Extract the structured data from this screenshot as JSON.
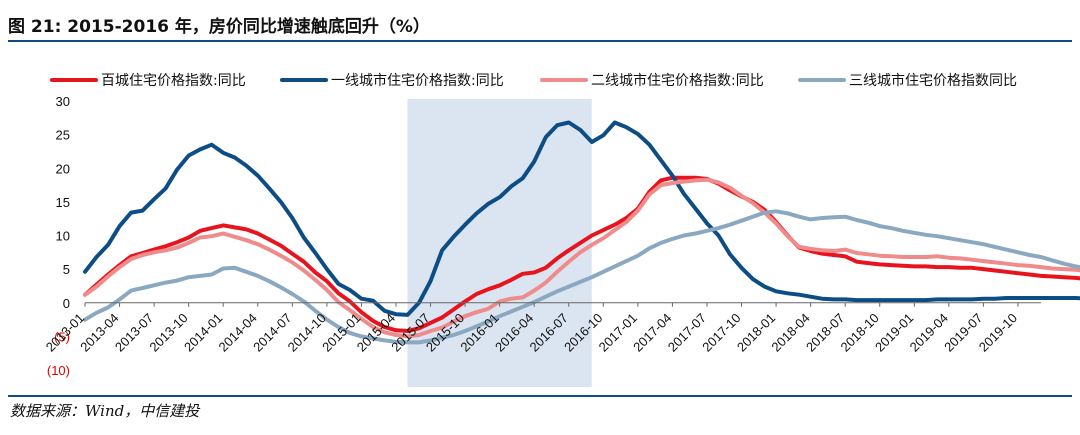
{
  "header": {
    "title": "图 21: 2015-2016 年，房价同比增速触底回升（%）"
  },
  "footer": {
    "source": "数据来源：Wind，中信建投"
  },
  "chart_data": {
    "type": "line",
    "title": "",
    "xlabel": "",
    "ylabel": "",
    "ylim": [
      -10,
      30
    ],
    "yticks": [
      {
        "value": 30,
        "label": "30"
      },
      {
        "value": 25,
        "label": "25"
      },
      {
        "value": 20,
        "label": "20"
      },
      {
        "value": 15,
        "label": "15"
      },
      {
        "value": 10,
        "label": "10"
      },
      {
        "value": 5,
        "label": "5"
      },
      {
        "value": 0,
        "label": "0"
      },
      {
        "value": -5,
        "label": "(5)"
      },
      {
        "value": -10,
        "label": "(10)"
      }
    ],
    "xtick_labels": [
      "2013-01",
      "2013-04",
      "2013-07",
      "2013-10",
      "2014-01",
      "2014-04",
      "2014-07",
      "2014-10",
      "2015-01",
      "2015-04",
      "2015-07",
      "2015-10",
      "2016-01",
      "2016-04",
      "2016-07",
      "2016-10",
      "2017-01",
      "2017-04",
      "2017-07",
      "2017-10",
      "2018-01",
      "2018-04",
      "2018-07",
      "2018-10",
      "2019-01",
      "2019-04",
      "2019-07",
      "2019-10"
    ],
    "x_start": "2013-01",
    "x_end": "2019-12",
    "highlight_period": [
      "2015-05",
      "2016-09"
    ],
    "highlight_color": "#dbe5f1",
    "legend_position": "top",
    "series": [
      {
        "name": "百城住宅价格指数:同比",
        "color": "#e8141d",
        "values": [
          1.2,
          2.7,
          4.2,
          5.6,
          6.9,
          7.4,
          7.9,
          8.4,
          9.0,
          9.7,
          10.7,
          11.1,
          11.5,
          11.2,
          10.9,
          10.3,
          9.4,
          8.5,
          7.3,
          6.1,
          4.5,
          3.2,
          1.4,
          0.2,
          -1.4,
          -2.7,
          -3.6,
          -4.1,
          -4.2,
          -3.8,
          -3.0,
          -2.2,
          -1.0,
          0.2,
          1.3,
          2.0,
          2.6,
          3.4,
          4.3,
          4.5,
          5.2,
          6.6,
          7.8,
          8.9,
          10.0,
          10.8,
          11.6,
          12.6,
          14.0,
          16.5,
          18.2,
          18.6,
          18.6,
          18.6,
          18.4,
          17.7,
          16.7,
          15.8,
          15.0,
          13.8,
          12.0,
          10.0,
          8.2,
          7.7,
          7.3,
          7.1,
          6.9,
          6.1,
          5.9,
          5.7,
          5.6,
          5.5,
          5.4,
          5.4,
          5.3,
          5.3,
          5.2,
          5.2,
          5.0,
          4.8,
          4.6,
          4.4,
          4.2,
          4.0,
          3.9,
          3.8,
          3.7,
          3.5,
          3.3,
          3.3,
          3.4
        ]
      },
      {
        "name": "一线城市住宅价格指数:同比",
        "color": "#0d4d86",
        "values": [
          4.6,
          6.8,
          8.6,
          11.4,
          13.4,
          13.7,
          15.4,
          17.0,
          19.8,
          21.9,
          22.8,
          23.5,
          22.3,
          21.6,
          20.4,
          18.9,
          17.0,
          15.0,
          12.6,
          9.7,
          7.4,
          5.0,
          2.8,
          1.9,
          0.6,
          0.3,
          -1.2,
          -1.7,
          -1.8,
          0.0,
          3.2,
          7.8,
          9.8,
          11.6,
          13.3,
          14.7,
          15.7,
          17.3,
          18.5,
          21.0,
          24.6,
          26.4,
          26.8,
          25.7,
          23.9,
          24.9,
          26.8,
          26.1,
          25.1,
          23.5,
          21.2,
          18.9,
          16.2,
          14.0,
          11.8,
          10.0,
          7.2,
          5.2,
          3.5,
          2.4,
          1.7,
          1.4,
          1.2,
          0.9,
          0.6,
          0.5,
          0.5,
          0.4,
          0.4,
          0.4,
          0.4,
          0.4,
          0.4,
          0.4,
          0.5,
          0.5,
          0.5,
          0.5,
          0.6,
          0.6,
          0.7,
          0.7,
          0.7,
          0.7,
          0.7,
          0.7,
          0.7,
          0.6,
          0.6,
          0.7,
          0.8
        ]
      },
      {
        "name": "二线城市住宅价格指数:同比",
        "color": "#f08b8b",
        "values": [
          1.2,
          2.4,
          3.9,
          5.3,
          6.5,
          7.1,
          7.5,
          7.8,
          8.2,
          8.9,
          9.7,
          9.9,
          10.3,
          9.8,
          9.3,
          8.7,
          7.9,
          7.0,
          6.0,
          4.8,
          3.4,
          1.9,
          0.1,
          -1.1,
          -2.4,
          -3.6,
          -4.4,
          -4.8,
          -5.0,
          -4.8,
          -4.2,
          -3.7,
          -2.8,
          -2.0,
          -1.4,
          -0.9,
          0.2,
          0.6,
          0.8,
          1.8,
          3.0,
          4.6,
          6.1,
          7.5,
          8.6,
          9.6,
          10.8,
          12.0,
          13.7,
          16.1,
          17.5,
          17.8,
          18.0,
          18.2,
          18.3,
          17.9,
          17.1,
          15.9,
          14.8,
          13.4,
          11.8,
          9.9,
          8.3,
          8.0,
          7.8,
          7.7,
          7.9,
          7.4,
          7.2,
          7.0,
          6.9,
          6.8,
          6.8,
          6.8,
          6.9,
          6.7,
          6.6,
          6.4,
          6.2,
          6.0,
          5.8,
          5.6,
          5.5,
          5.3,
          5.1,
          5.0,
          4.9,
          4.7,
          4.6,
          4.4,
          4.3
        ]
      },
      {
        "name": "三线城市住宅价格指数同比",
        "color": "#8aa9c1",
        "values": [
          -2.5,
          -1.5,
          -0.7,
          0.5,
          1.8,
          2.2,
          2.6,
          3.0,
          3.3,
          3.8,
          4.0,
          4.2,
          5.1,
          5.2,
          4.6,
          4.0,
          3.2,
          2.3,
          1.3,
          0.2,
          -1.2,
          -2.5,
          -3.6,
          -4.5,
          -5.0,
          -5.3,
          -5.6,
          -5.8,
          -5.9,
          -5.9,
          -5.6,
          -5.2,
          -4.8,
          -4.2,
          -3.5,
          -2.8,
          -2.0,
          -1.3,
          -0.6,
          0.1,
          0.9,
          1.7,
          2.4,
          3.1,
          3.8,
          4.6,
          5.4,
          6.2,
          7.0,
          8.1,
          8.9,
          9.5,
          10.0,
          10.3,
          10.7,
          11.1,
          11.6,
          12.2,
          12.8,
          13.4,
          13.6,
          13.3,
          12.8,
          12.4,
          12.6,
          12.7,
          12.8,
          12.3,
          11.9,
          11.4,
          11.1,
          10.7,
          10.4,
          10.1,
          9.9,
          9.6,
          9.3,
          9.0,
          8.7,
          8.3,
          7.9,
          7.5,
          7.1,
          6.8,
          6.3,
          5.8,
          5.4,
          5.1,
          4.9,
          4.7,
          4.6
        ]
      }
    ]
  }
}
